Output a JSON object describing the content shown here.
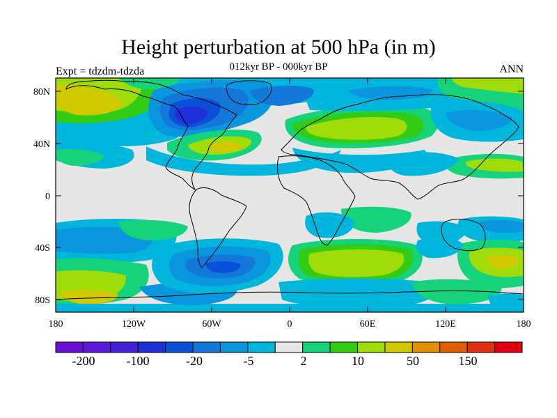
{
  "title": "Height perturbation at 500 hPa (in m)",
  "subtitle": "012kyr BP - 000kyr BP",
  "left_label": "Expt = tdzdm-tdzda",
  "right_label": "ANN",
  "lat_ticks": [
    "80N",
    "40N",
    "0",
    "40S",
    "80S"
  ],
  "lon_ticks": [
    "180",
    "120W",
    "60W",
    "0",
    "60E",
    "120E",
    "180"
  ],
  "colorbar": {
    "colors": [
      "#6a0fd2",
      "#5a1ad8",
      "#4422d8",
      "#2030d8",
      "#0a50d8",
      "#1478da",
      "#0a96dc",
      "#00b6dc",
      "#e6e6e6",
      "#16d27a",
      "#32cc14",
      "#a0dc0a",
      "#d0c800",
      "#e09000",
      "#e06000",
      "#e03010",
      "#e00010"
    ],
    "labels": [
      "-200",
      "-100",
      "-20",
      "-5",
      "2",
      "10",
      "50",
      "150"
    ]
  },
  "palette": {
    "neutral": "#e6e6e6",
    "c1": "#00b6dc",
    "c2": "#0a96dc",
    "c3": "#1478da",
    "c4": "#0a50d8",
    "c5": "#2030d8",
    "w1": "#16d27a",
    "w2": "#32cc14",
    "w3": "#a0dc0a",
    "w4": "#d0c800"
  }
}
